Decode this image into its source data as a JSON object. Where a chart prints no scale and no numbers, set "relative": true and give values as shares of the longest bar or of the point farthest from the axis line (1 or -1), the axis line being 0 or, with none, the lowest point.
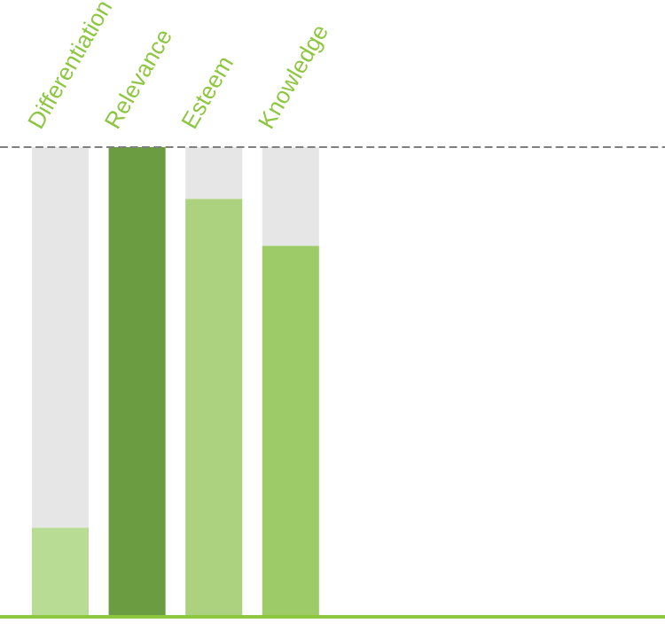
{
  "chart_data": {
    "type": "bar",
    "relative": true,
    "stacked": true,
    "categories": [
      "Differentiation",
      "Relevance",
      "Esteem",
      "Knowledge"
    ],
    "series": [
      {
        "values": [
          0.19,
          1,
          0.89,
          0.79
        ],
        "colors": [
          "#b9dc95",
          "#6b9c42",
          "#acd27f",
          "#9ccb68"
        ]
      },
      {
        "color": "#e6e6e6",
        "values": [
          0.81,
          0,
          0.11,
          0.21
        ]
      }
    ],
    "ref_lines": [
      {
        "axis": "y",
        "value": 1,
        "color": "#808080",
        "line_style": "dashed"
      }
    ],
    "legend": false
  }
}
